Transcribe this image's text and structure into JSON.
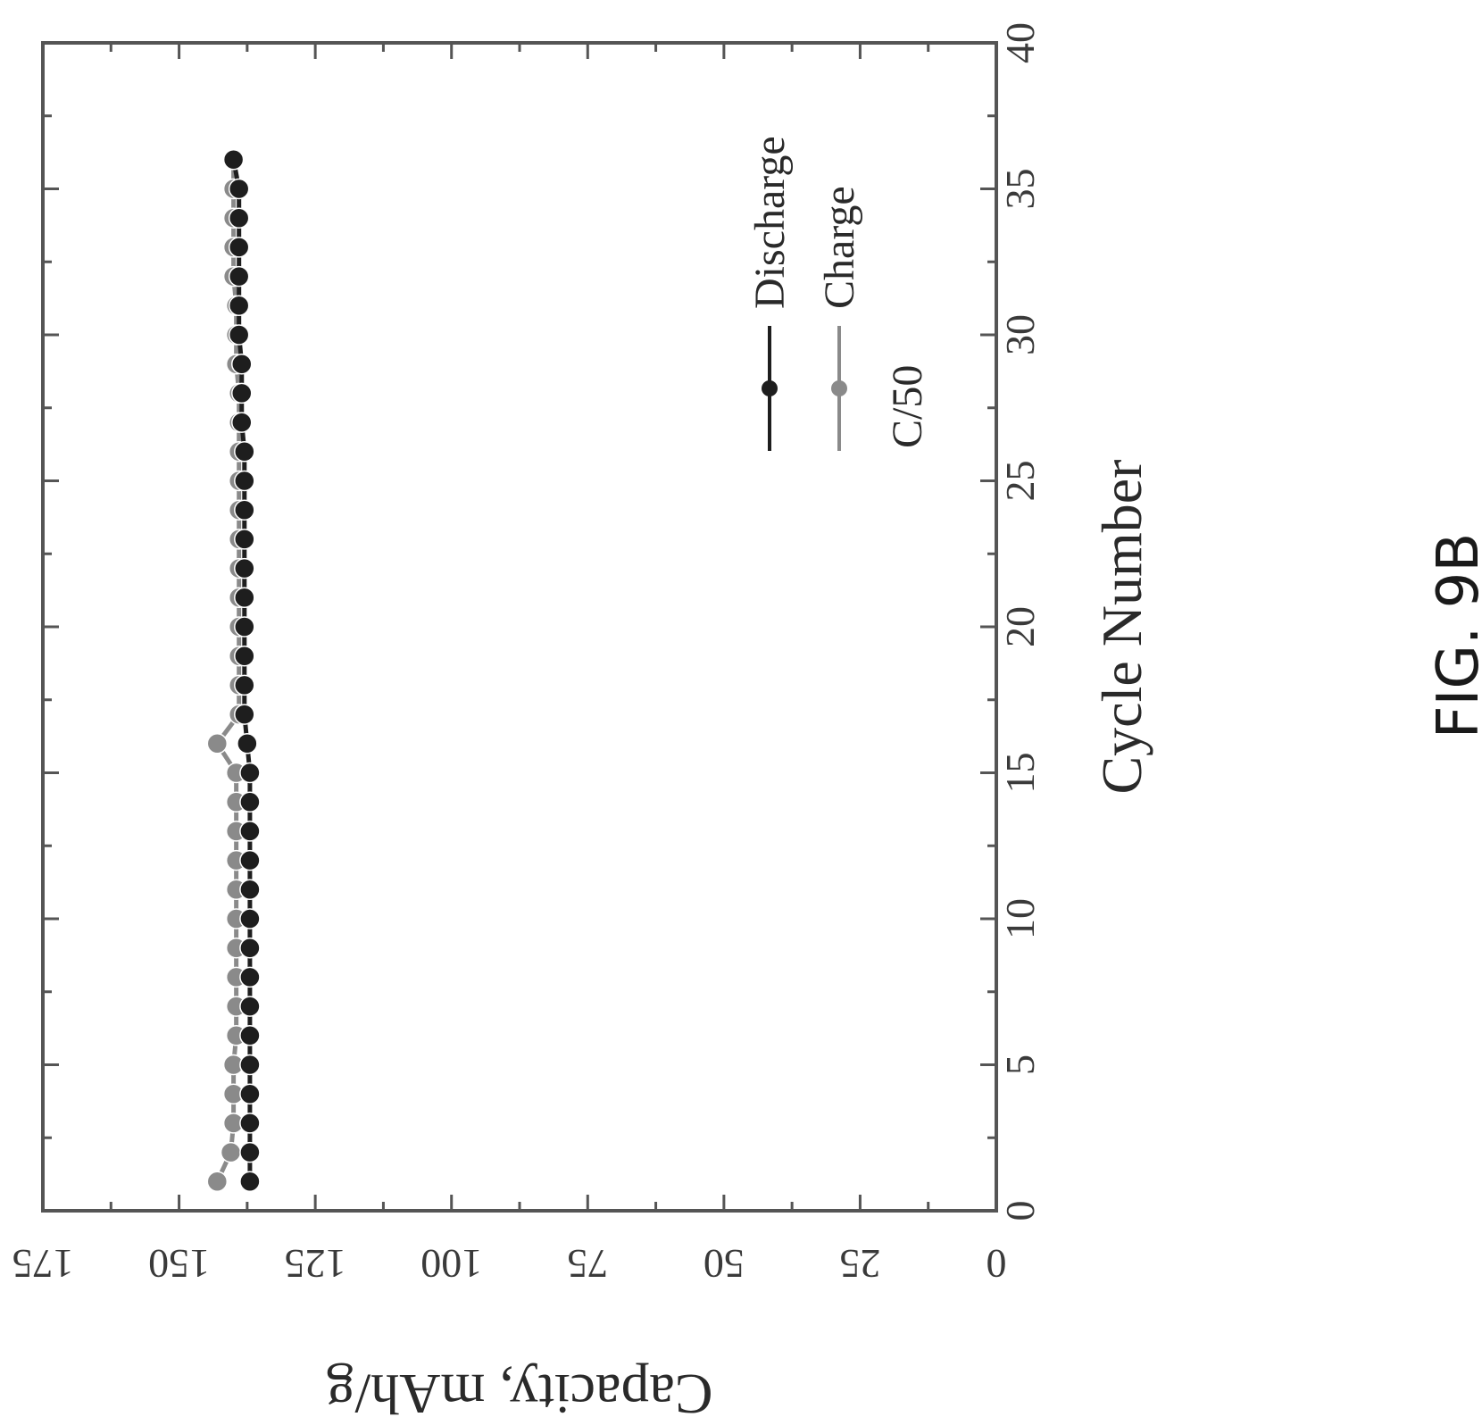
{
  "figure_label": "FIG. 9B",
  "chart_data": {
    "type": "line",
    "xlabel": "Cycle Number",
    "ylabel": "Capacity, mAh/g",
    "xlim": [
      0,
      40
    ],
    "ylim": [
      0,
      175
    ],
    "x_ticks": [
      0,
      5,
      10,
      15,
      20,
      25,
      30,
      35,
      40
    ],
    "y_ticks": [
      0,
      25,
      50,
      75,
      100,
      125,
      150,
      175
    ],
    "legend_position": "top-right",
    "legend_note": "C/50",
    "grid": false,
    "series_colors": {
      "Discharge": "#1e1e1e",
      "Charge": "#8a8a8a"
    },
    "x": [
      1,
      2,
      3,
      4,
      5,
      6,
      7,
      8,
      9,
      10,
      11,
      12,
      13,
      14,
      15,
      16,
      17,
      18,
      19,
      20,
      21,
      22,
      23,
      24,
      25,
      26,
      27,
      28,
      29,
      30,
      31,
      32,
      33,
      34,
      35,
      36
    ],
    "series": [
      {
        "name": "Discharge",
        "values": [
          137,
          137,
          137,
          137,
          137,
          137,
          137,
          137,
          137,
          137,
          137,
          137,
          137,
          137,
          137,
          137.5,
          138,
          138,
          138,
          138,
          138,
          138,
          138,
          138,
          138,
          138,
          138.5,
          138.5,
          138.5,
          139,
          139,
          139,
          139,
          139,
          139,
          140
        ]
      },
      {
        "name": "Charge",
        "values": [
          143,
          140.5,
          140,
          140,
          140,
          139.5,
          139.5,
          139.5,
          139.5,
          139.5,
          139.5,
          139.5,
          139.5,
          139.5,
          139.5,
          143,
          139,
          139,
          139,
          139,
          139,
          139,
          139,
          139,
          139,
          139,
          139,
          139,
          139.5,
          139.5,
          139.5,
          140,
          140,
          140,
          140,
          140
        ]
      }
    ]
  }
}
